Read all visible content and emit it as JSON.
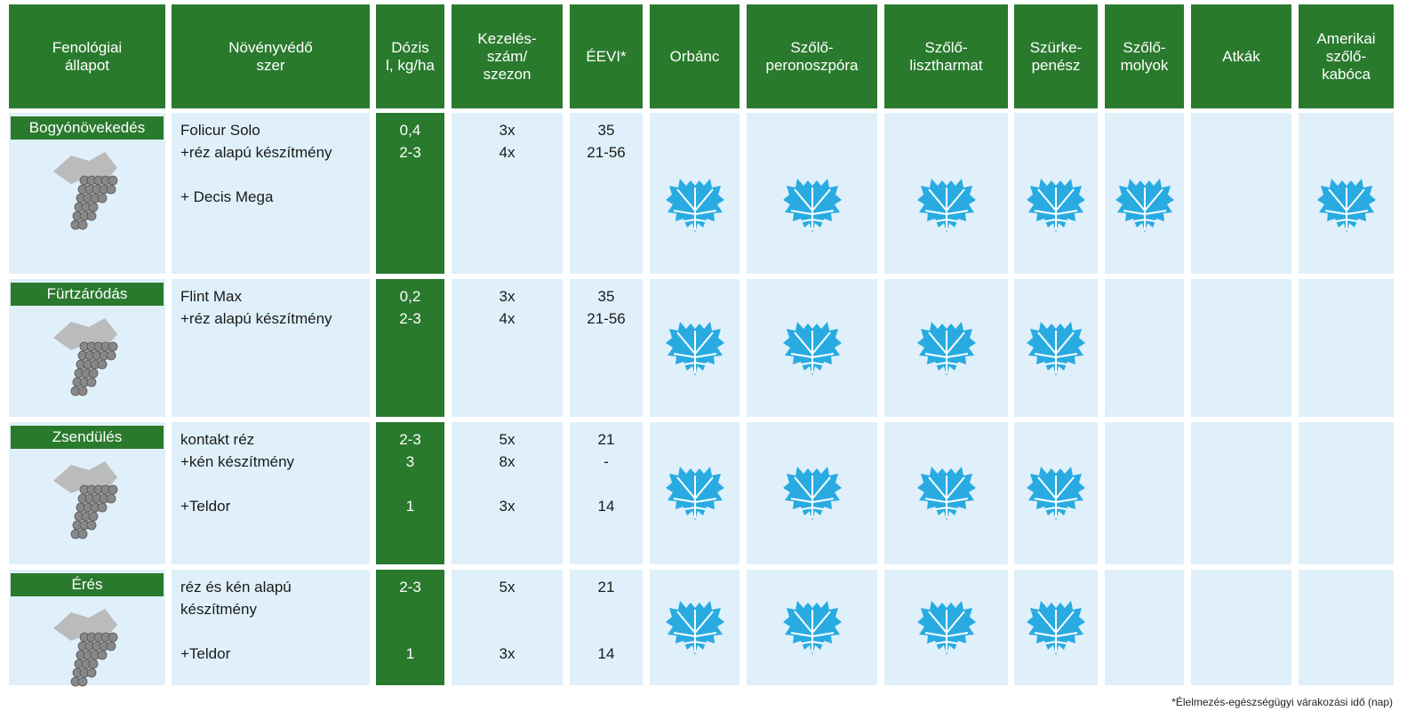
{
  "header": [
    "Fenológiai|állapot",
    "Növényvédő|szer",
    "Dózis|l, kg/ha",
    "Kezelés-|szám/|szezon",
    "ÉEVI*",
    "Orbánc",
    "Szőlő-|peronoszpóra",
    "Szőlő-|lisztharmat",
    "Szürke-|penész",
    "Szőlő-|molyok",
    "Atkák",
    "Amerikai|szőlő-|kabóca"
  ],
  "rows": [
    {
      "stage": "Bogyónövekedés",
      "products": [
        [
          "Folicur Solo",
          "+réz alapú készítmény"
        ],
        [
          "+ Decis Mega"
        ]
      ],
      "dose": [
        [
          "0,4",
          "2-3"
        ]
      ],
      "count": [
        [
          "3x",
          "4x"
        ]
      ],
      "eevi": [
        [
          "35",
          "21-56"
        ]
      ],
      "targets": [
        true,
        true,
        true,
        true,
        true,
        false,
        true
      ]
    },
    {
      "stage": "Fürtzáródás",
      "products": [
        [
          "Flint Max",
          "+réz alapú készítmény"
        ]
      ],
      "dose": [
        [
          "0,2",
          "2-3"
        ]
      ],
      "count": [
        [
          "3x",
          "4x"
        ]
      ],
      "eevi": [
        [
          "35",
          "21-56"
        ]
      ],
      "targets": [
        true,
        true,
        true,
        true,
        false,
        false,
        false
      ]
    },
    {
      "stage": "Zsendülés",
      "products": [
        [
          "kontakt réz",
          "+kén készítmény"
        ],
        [
          "+Teldor"
        ]
      ],
      "dose": [
        [
          "2-3",
          "3"
        ],
        [
          "1"
        ]
      ],
      "count": [
        [
          "5x",
          "8x"
        ],
        [
          "3x"
        ]
      ],
      "eevi": [
        [
          "21",
          "-"
        ],
        [
          "14"
        ]
      ],
      "targets": [
        true,
        true,
        true,
        true,
        false,
        false,
        false
      ]
    },
    {
      "stage": "Érés",
      "products": [
        [
          "réz és kén alapú",
          "készítmény"
        ],
        [
          "+Teldor"
        ]
      ],
      "dose": [
        [
          "2-3"
        ],
        [
          "1"
        ]
      ],
      "count": [
        [
          "5x"
        ],
        [
          "3x"
        ]
      ],
      "eevi": [
        [
          "21"
        ],
        [
          "14"
        ]
      ],
      "targets": [
        true,
        true,
        true,
        true,
        false,
        false,
        false
      ]
    }
  ],
  "footnote": "*Élelmezés-egészségügyi várakozási idő (nap)"
}
